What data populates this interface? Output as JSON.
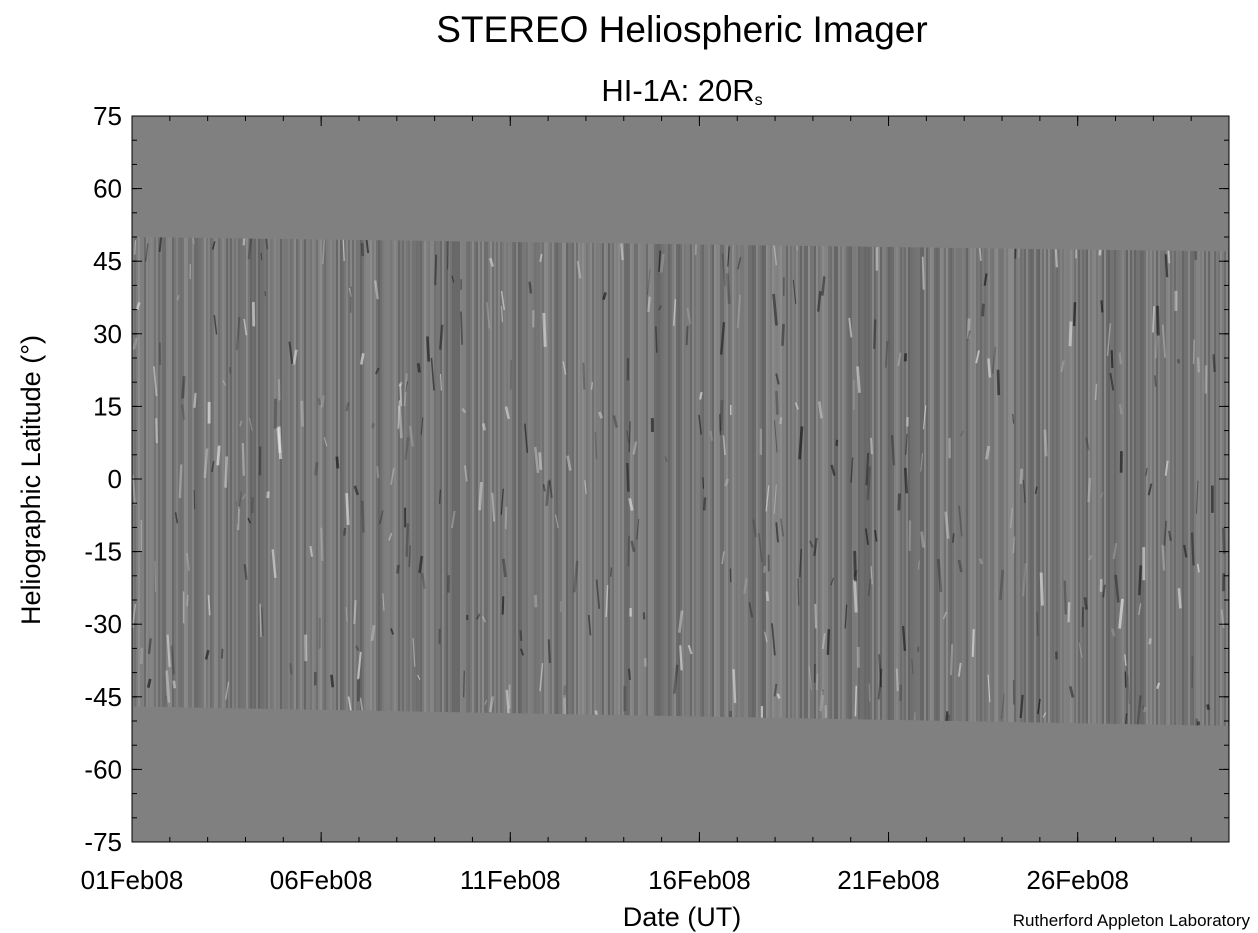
{
  "chart_data": {
    "type": "jmap",
    "title": "STEREO Heliospheric Imager",
    "subtitle": "HI-1A: 20R",
    "subtitle_subscript": "s",
    "x_label": "Date (UT)",
    "y_label": "Heliographic Latitude (°)",
    "credit": "Rutherford Appleton Laboratory",
    "xlim": [
      1,
      30
    ],
    "xticks": [
      {
        "value": 1,
        "label": "01Feb08"
      },
      {
        "value": 6,
        "label": "06Feb08"
      },
      {
        "value": 11,
        "label": "11Feb08"
      },
      {
        "value": 16,
        "label": "16Feb08"
      },
      {
        "value": 21,
        "label": "21Feb08"
      },
      {
        "value": 26,
        "label": "26Feb08"
      }
    ],
    "ylim": [
      -75,
      75
    ],
    "yticks": [
      -75,
      -60,
      -45,
      -30,
      -15,
      0,
      15,
      30,
      45,
      60,
      75
    ],
    "coverage": {
      "upper": [
        50,
        47
      ],
      "lower": [
        -47,
        -51
      ]
    },
    "background_color": "#808080"
  }
}
